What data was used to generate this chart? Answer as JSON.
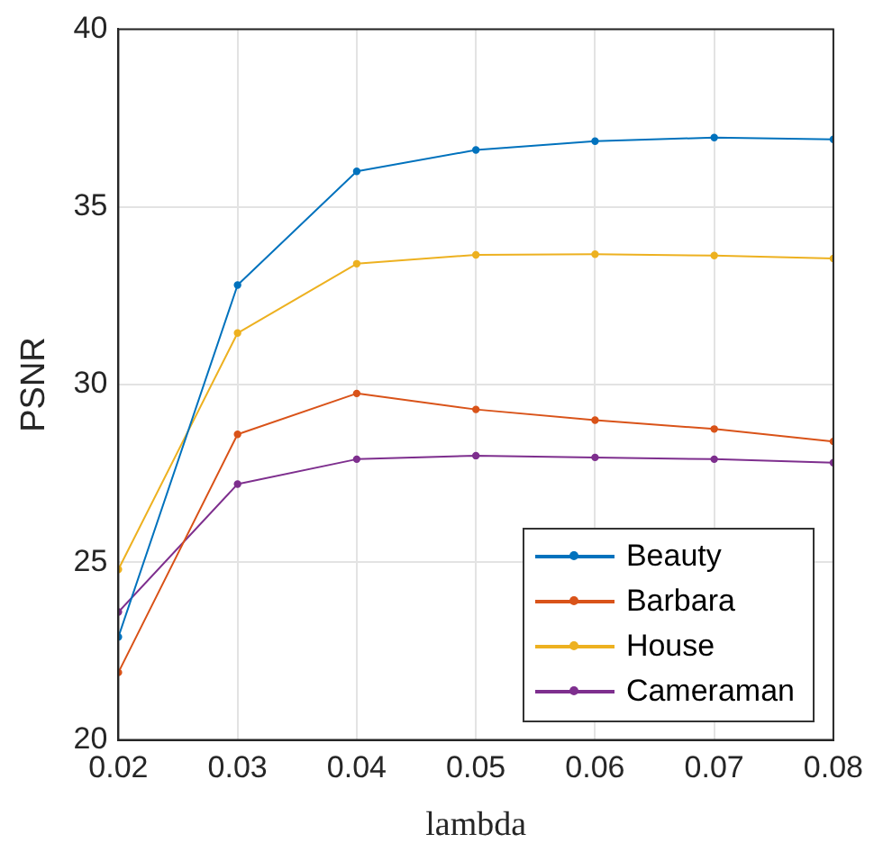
{
  "chart_data": {
    "type": "line",
    "xlabel": "lambda",
    "ylabel": "PSNR",
    "x": [
      0.02,
      0.03,
      0.04,
      0.05,
      0.06,
      0.07,
      0.08
    ],
    "series": [
      {
        "name": "Beauty",
        "color": "#0072bd",
        "values": [
          22.9,
          32.8,
          36.0,
          36.6,
          36.85,
          36.95,
          36.9
        ]
      },
      {
        "name": "Barbara",
        "color": "#d95319",
        "values": [
          21.9,
          28.6,
          29.75,
          29.3,
          29.0,
          28.75,
          28.4
        ]
      },
      {
        "name": "House",
        "color": "#edb120",
        "values": [
          24.8,
          31.45,
          33.4,
          33.65,
          33.67,
          33.63,
          33.55
        ]
      },
      {
        "name": "Cameraman",
        "color": "#7e2f8e",
        "values": [
          23.6,
          27.2,
          27.9,
          28.0,
          27.95,
          27.9,
          27.8
        ]
      }
    ],
    "xlim": [
      0.02,
      0.08
    ],
    "xticks": [
      0.02,
      0.03,
      0.04,
      0.05,
      0.06,
      0.07,
      0.08
    ],
    "ylim": [
      20,
      40
    ],
    "yticks": [
      20,
      25,
      30,
      35,
      40
    ],
    "grid": true,
    "legend": "bottom right",
    "marker": "circle",
    "line_style": "solid"
  }
}
